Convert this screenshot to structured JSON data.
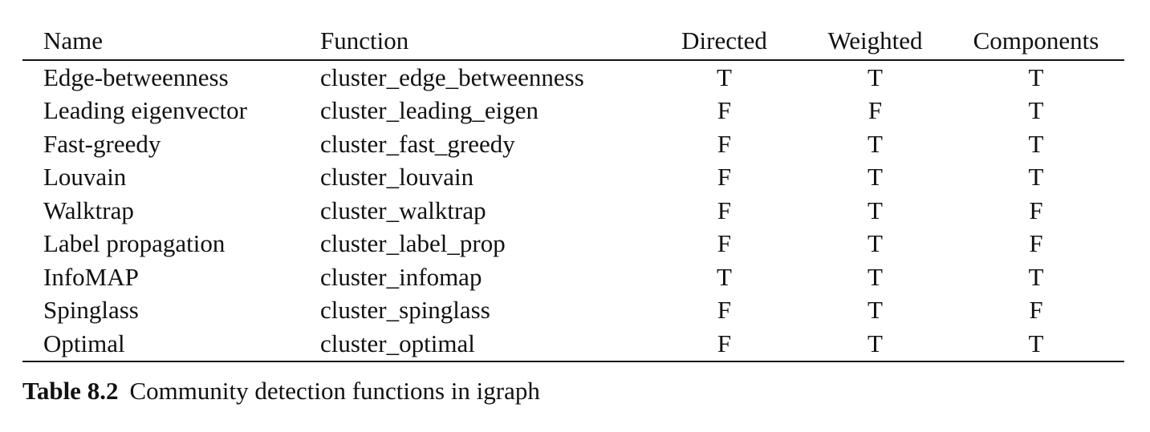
{
  "table": {
    "headers": [
      "Name",
      "Function",
      "Directed",
      "Weighted",
      "Components"
    ],
    "rows": [
      [
        "Edge-betweenness",
        "cluster_edge_betweenness",
        "T",
        "T",
        "T"
      ],
      [
        "Leading eigenvector",
        "cluster_leading_eigen",
        "F",
        "F",
        "T"
      ],
      [
        "Fast-greedy",
        "cluster_fast_greedy",
        "F",
        "T",
        "T"
      ],
      [
        "Louvain",
        "cluster_louvain",
        "F",
        "T",
        "T"
      ],
      [
        "Walktrap",
        "cluster_walktrap",
        "F",
        "T",
        "F"
      ],
      [
        "Label propagation",
        "cluster_label_prop",
        "F",
        "T",
        "F"
      ],
      [
        "InfoMAP",
        "cluster_infomap",
        "T",
        "T",
        "T"
      ],
      [
        "Spinglass",
        "cluster_spinglass",
        "F",
        "T",
        "F"
      ],
      [
        "Optimal",
        "cluster_optimal",
        "F",
        "T",
        "T"
      ]
    ]
  },
  "caption": {
    "label": "Table 8.2",
    "text": "Community detection functions in igraph"
  }
}
